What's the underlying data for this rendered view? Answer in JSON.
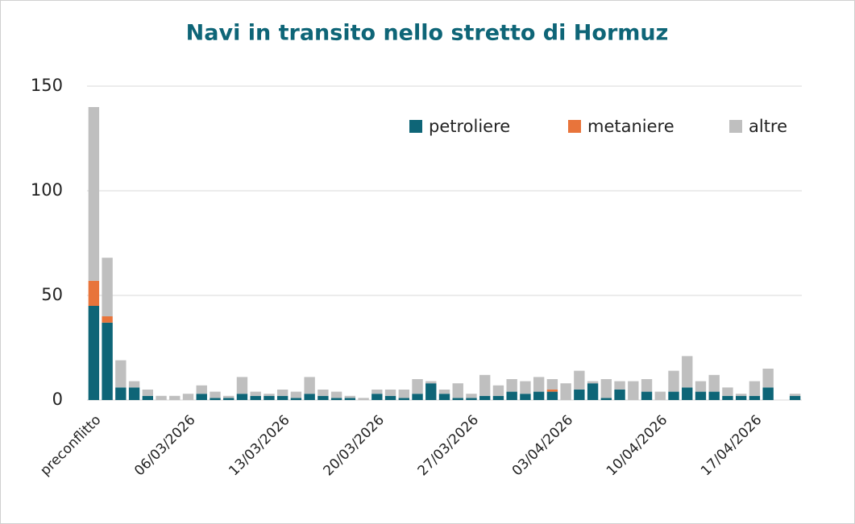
{
  "chart_data": {
    "type": "stacked_bar",
    "title": "Navi in transito nello stretto di Hormuz",
    "categories": [
      "preconflitto",
      null,
      null,
      null,
      null,
      null,
      null,
      "06/03/2026",
      null,
      null,
      null,
      null,
      null,
      null,
      "13/03/2026",
      null,
      null,
      null,
      null,
      null,
      null,
      "20/03/2026",
      null,
      null,
      null,
      null,
      null,
      null,
      "27/03/2026",
      null,
      null,
      null,
      null,
      null,
      null,
      "03/04/2026",
      null,
      null,
      null,
      null,
      null,
      null,
      "10/04/2026",
      null,
      null,
      null,
      null,
      null,
      null,
      "17/04/2026",
      null,
      null,
      null
    ],
    "series": [
      {
        "name": "petroliere",
        "color": "#0e6577",
        "values": [
          45,
          37,
          6,
          6,
          2,
          0,
          0,
          0,
          3,
          1,
          1,
          3,
          2,
          2,
          2,
          1,
          3,
          2,
          1,
          1,
          0,
          3,
          2,
          1,
          3,
          8,
          3,
          1,
          1,
          2,
          2,
          4,
          3,
          4,
          4,
          0,
          5,
          8,
          1,
          5,
          0,
          4,
          0,
          4,
          6,
          4,
          4,
          2,
          2,
          2,
          6,
          0,
          2
        ]
      },
      {
        "name": "metaniere",
        "color": "#e8743b",
        "values": [
          12,
          3,
          0,
          0,
          0,
          0,
          0,
          0,
          0,
          0,
          0,
          0,
          0,
          0,
          0,
          0,
          0,
          0,
          0,
          0,
          0,
          0,
          0,
          0,
          0,
          0,
          0,
          0,
          0,
          0,
          0,
          0,
          0,
          0,
          1,
          0,
          0,
          0,
          0,
          0,
          0,
          0,
          0,
          0,
          0,
          0,
          0,
          0,
          0,
          0,
          0,
          0,
          0
        ]
      },
      {
        "name": "altre",
        "color": "#bfbfbf",
        "values": [
          83,
          28,
          13,
          3,
          3,
          2,
          2,
          3,
          4,
          3,
          1,
          8,
          2,
          1,
          3,
          3,
          8,
          3,
          3,
          1,
          1,
          2,
          3,
          4,
          7,
          1,
          2,
          7,
          2,
          10,
          5,
          6,
          6,
          7,
          5,
          8,
          9,
          1,
          9,
          4,
          9,
          6,
          4,
          10,
          15,
          5,
          8,
          4,
          1,
          7,
          9,
          0,
          1
        ]
      }
    ],
    "ylim": [
      0,
      150
    ],
    "yticks": [
      0,
      50,
      100,
      150
    ],
    "grid": true,
    "legend": "top-right"
  }
}
